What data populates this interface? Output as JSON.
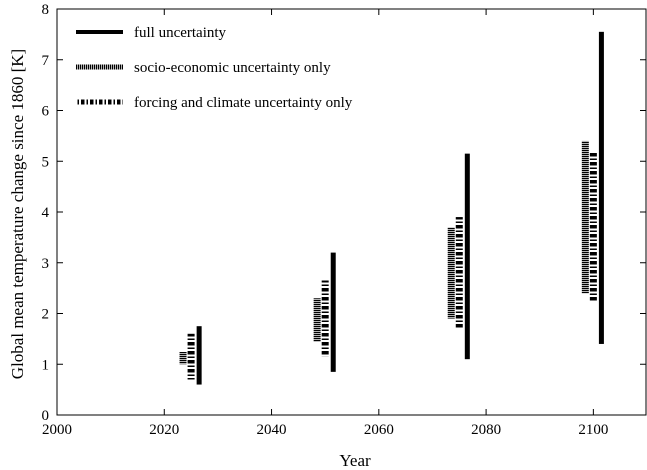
{
  "chart_data": {
    "type": "range-bars",
    "title": "",
    "xlabel": "Year",
    "ylabel": "Global mean temperature change since 1860 [K]",
    "xlim": [
      2000,
      2110
    ],
    "ylim": [
      0,
      8
    ],
    "xticks": [
      2000,
      2020,
      2040,
      2060,
      2080,
      2100
    ],
    "yticks": [
      0,
      1,
      2,
      3,
      4,
      5,
      6,
      7,
      8
    ],
    "grid": false,
    "legend_position": "top-left",
    "series": [
      {
        "name": "full uncertainty",
        "style": "solid",
        "ranges": [
          {
            "x": 2026.5,
            "low": 0.6,
            "high": 1.75
          },
          {
            "x": 2051.5,
            "low": 0.85,
            "high": 3.2
          },
          {
            "x": 2076.5,
            "low": 1.1,
            "high": 5.15
          },
          {
            "x": 2101.5,
            "low": 1.4,
            "high": 7.55
          }
        ]
      },
      {
        "name": "socio-economic uncertainty only",
        "style": "dotted",
        "ranges": [
          {
            "x": 2023.5,
            "low": 1.0,
            "high": 1.25
          },
          {
            "x": 2048.5,
            "low": 1.45,
            "high": 2.3
          },
          {
            "x": 2073.5,
            "low": 1.9,
            "high": 3.7
          },
          {
            "x": 2098.5,
            "low": 2.4,
            "high": 5.4
          }
        ]
      },
      {
        "name": "forcing and climate uncertainty only",
        "style": "dashdot",
        "ranges": [
          {
            "x": 2025,
            "low": 0.7,
            "high": 1.6
          },
          {
            "x": 2050,
            "low": 1.15,
            "high": 2.65
          },
          {
            "x": 2075,
            "low": 1.7,
            "high": 3.9
          },
          {
            "x": 2100,
            "low": 2.25,
            "high": 5.2
          }
        ]
      }
    ]
  }
}
